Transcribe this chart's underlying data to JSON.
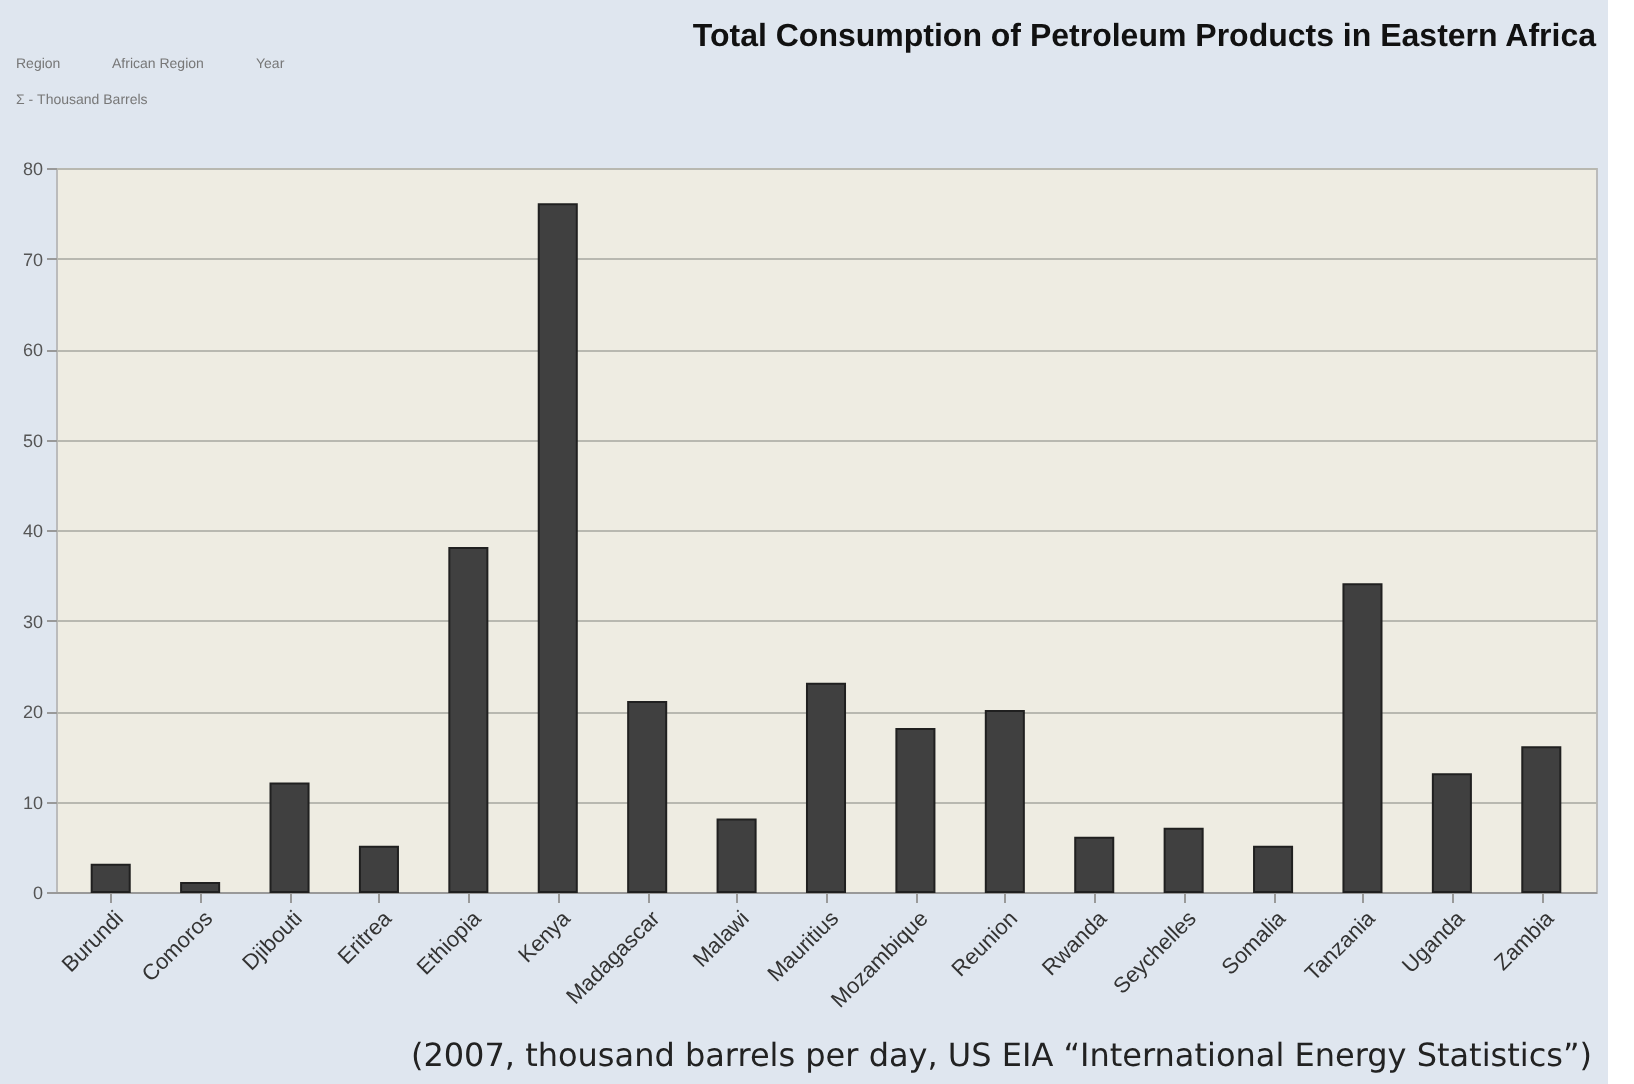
{
  "chart_data": {
    "type": "bar",
    "title": "Total Consumption of Petroleum Products in Eastern Africa",
    "categories": [
      "Burundi",
      "Comoros",
      "Djibouti",
      "Eritrea",
      "Ethiopia",
      "Kenya",
      "Madagascar",
      "Malawi",
      "Mauritius",
      "Mozambique",
      "Reunion",
      "Rwanda",
      "Seychelles",
      "Somalia",
      "Tanzania",
      "Uganda",
      "Zambia"
    ],
    "values": [
      3,
      1,
      12,
      5,
      38,
      76,
      21,
      8,
      23,
      18,
      20,
      6,
      7,
      5,
      34,
      13,
      16
    ],
    "color": "#404040",
    "ylim": [
      0,
      80
    ],
    "yticks": [
      0,
      10,
      20,
      30,
      40,
      50,
      60,
      70,
      80
    ],
    "grid": "y",
    "annotations": [
      "Region",
      "African Region",
      "Year",
      "Σ - Thousand Barrels",
      "(2007, thousand barrels per day, US EIA “International Energy Statistics”)"
    ]
  }
}
